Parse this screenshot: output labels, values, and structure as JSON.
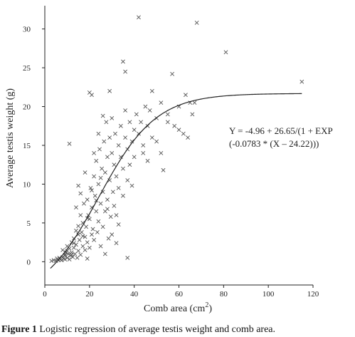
{
  "chart_data": {
    "type": "scatter",
    "xlabel": "Comb area (cm",
    "xlabel_sup": "2",
    "xlabel_close": ")",
    "ylabel": "Average testis weight (g)",
    "xlim": [
      0,
      120
    ],
    "ylim": [
      -3,
      33
    ],
    "xticks": [
      0,
      20,
      40,
      60,
      80,
      100,
      120
    ],
    "yticks": [
      0,
      5,
      10,
      15,
      20,
      25,
      30
    ],
    "grid": false,
    "equation_line1": "Y = -4.96 + 26.65/(1 + EXP",
    "equation_line2": "(-0.0783 * (X – 24.22)))",
    "fit": {
      "a": -4.96,
      "b": 26.65,
      "k": -0.0783,
      "x0": 24.22,
      "x_range": [
        2.5,
        115
      ]
    },
    "points": [
      [
        3,
        0.1
      ],
      [
        4,
        0.2
      ],
      [
        5,
        0.1
      ],
      [
        5.5,
        0.4
      ],
      [
        6,
        0.2
      ],
      [
        6.5,
        0.5
      ],
      [
        7,
        0.3
      ],
      [
        7.5,
        0.2
      ],
      [
        8,
        0.6
      ],
      [
        8,
        1.5
      ],
      [
        8.5,
        0.4
      ],
      [
        9,
        0.8
      ],
      [
        9,
        0.3
      ],
      [
        9.5,
        1.2
      ],
      [
        10,
        0.5
      ],
      [
        10,
        2.0
      ],
      [
        10.5,
        1.0
      ],
      [
        11,
        0.3
      ],
      [
        11,
        1.7
      ],
      [
        11.5,
        0.8
      ],
      [
        12,
        2.5
      ],
      [
        12,
        1.2
      ],
      [
        12.5,
        0.6
      ],
      [
        13,
        3.0
      ],
      [
        13,
        1.8
      ],
      [
        13.5,
        1.0
      ],
      [
        14,
        2.2
      ],
      [
        14,
        4.0
      ],
      [
        14.5,
        0.5
      ],
      [
        15,
        3.5
      ],
      [
        15,
        1.4
      ],
      [
        15.5,
        2.8
      ],
      [
        16,
        6.0
      ],
      [
        16,
        0.9
      ],
      [
        16.5,
        3.8
      ],
      [
        17,
        2.0
      ],
      [
        17,
        5.0
      ],
      [
        17.5,
        7.5
      ],
      [
        18,
        1.5
      ],
      [
        18,
        3.2
      ],
      [
        18.5,
        4.5
      ],
      [
        19,
        8.0
      ],
      [
        19,
        2.5
      ],
      [
        19.5,
        6.0
      ],
      [
        20,
        5.5
      ],
      [
        20,
        1.8
      ],
      [
        20.5,
        9.5
      ],
      [
        21,
        3.5
      ],
      [
        21,
        7.0
      ],
      [
        21.5,
        4.2
      ],
      [
        22,
        11.0
      ],
      [
        22,
        2.8
      ],
      [
        22.5,
        8.5
      ],
      [
        23,
        6.5
      ],
      [
        23,
        13.0
      ],
      [
        23.5,
        3.8
      ],
      [
        24,
        10.0
      ],
      [
        24,
        5.2
      ],
      [
        24.5,
        14.5
      ],
      [
        25,
        7.5
      ],
      [
        25,
        2.0
      ],
      [
        25.5,
        12.0
      ],
      [
        26,
        9.0
      ],
      [
        26,
        4.5
      ],
      [
        26.5,
        15.5
      ],
      [
        27,
        11.5
      ],
      [
        27,
        6.5
      ],
      [
        27.5,
        18.0
      ],
      [
        28,
        8.0
      ],
      [
        28,
        13.5
      ],
      [
        28.5,
        3.0
      ],
      [
        29,
        16.0
      ],
      [
        29,
        10.5
      ],
      [
        29.5,
        5.8
      ],
      [
        30,
        14.0
      ],
      [
        30,
        18.5
      ],
      [
        30.5,
        9.0
      ],
      [
        31,
        12.5
      ],
      [
        31,
        7.2
      ],
      [
        31.5,
        16.5
      ],
      [
        32,
        11.0
      ],
      [
        32,
        6.0
      ],
      [
        33,
        15.0
      ],
      [
        33,
        9.5
      ],
      [
        34,
        13.5
      ],
      [
        34,
        17.5
      ],
      [
        35,
        12.0
      ],
      [
        35,
        8.5
      ],
      [
        36,
        16.0
      ],
      [
        36,
        19.5
      ],
      [
        37,
        14.5
      ],
      [
        37,
        10.5
      ],
      [
        38,
        18.0
      ],
      [
        38,
        12.5
      ],
      [
        39,
        15.5
      ],
      [
        40,
        13.5
      ],
      [
        40,
        17.0
      ],
      [
        41,
        19.0
      ],
      [
        42,
        16.5
      ],
      [
        43,
        18.0
      ],
      [
        44,
        15.0
      ],
      [
        45,
        20.0
      ],
      [
        46,
        17.5
      ],
      [
        47,
        19.5
      ],
      [
        48,
        22.0
      ],
      [
        48,
        16.0
      ],
      [
        50,
        18.5
      ],
      [
        52,
        20.5
      ],
      [
        55,
        19.0
      ],
      [
        58,
        17.5
      ],
      [
        9,
        0.9
      ],
      [
        10,
        1.4
      ],
      [
        12,
        0.9
      ],
      [
        13,
        2.4
      ],
      [
        15,
        4.6
      ],
      [
        17,
        3.3
      ],
      [
        19,
        5.6
      ],
      [
        21,
        9.2
      ],
      [
        23,
        7.9
      ],
      [
        25,
        10.8
      ],
      [
        18,
        11.5
      ],
      [
        20,
        21.8
      ],
      [
        21,
        21.5
      ],
      [
        11,
        15.2
      ],
      [
        15,
        9.8
      ],
      [
        26,
        18.8
      ],
      [
        29,
        22.0
      ],
      [
        35,
        25.8
      ],
      [
        36,
        24.5
      ],
      [
        37,
        0.5
      ],
      [
        42,
        31.5
      ],
      [
        57,
        24.2
      ],
      [
        60,
        20.0
      ],
      [
        66,
        19.0
      ],
      [
        68,
        30.8
      ],
      [
        81,
        27.0
      ],
      [
        115,
        23.2
      ],
      [
        53,
        11.8
      ],
      [
        62,
        16.5
      ],
      [
        65,
        20.5
      ],
      [
        60,
        17.0
      ],
      [
        64,
        16.0
      ],
      [
        22,
        14.0
      ],
      [
        24,
        16.5
      ],
      [
        27,
        1.0
      ],
      [
        30,
        3.5
      ],
      [
        33,
        4.8
      ],
      [
        39,
        9.8
      ],
      [
        44,
        14.0
      ],
      [
        46,
        13.0
      ],
      [
        50,
        15.5
      ],
      [
        52,
        14.0
      ],
      [
        55,
        18.0
      ],
      [
        63,
        21.5
      ],
      [
        67,
        20.5
      ],
      [
        14,
        7.0
      ],
      [
        16,
        8.8
      ],
      [
        19,
        0.4
      ],
      [
        28,
        6.8
      ],
      [
        32,
        2.4
      ]
    ]
  },
  "caption": {
    "bold": "Figure 1",
    "text": " Logistic regression of average testis weight and comb area."
  }
}
